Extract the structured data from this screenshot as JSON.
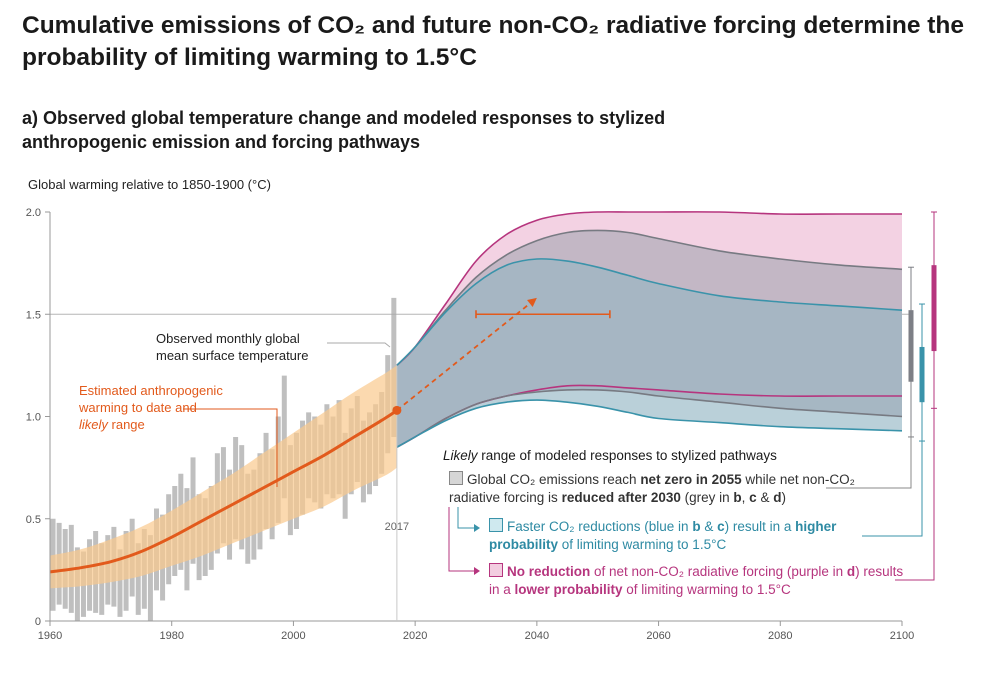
{
  "title": "Cumulative emissions of CO₂ and future non-CO₂ radiative forcing determine the probability of limiting warming to 1.5°C",
  "subtitle": "a) Observed global temperature change and modeled responses to stylized anthropogenic emission and forcing pathways",
  "annotations": {
    "observed": [
      "Observed monthly global",
      "mean surface temperature"
    ],
    "estimated_line1": "Estimated anthropogenic",
    "estimated_line2": "warming to date and",
    "estimated_likely": "likely",
    "estimated_range": " range",
    "year_marker": "2017"
  },
  "legend": {
    "heading_italic": "Likely",
    "heading_rest": " range of modeled responses to stylized pathways",
    "grey": {
      "t1": "Global CO₂ emissions reach ",
      "b1": "net zero in 2055",
      "t2": " while net non-CO₂ radiative forcing is ",
      "b2": "reduced after 2030",
      "t3": " (grey in ",
      "b3": "b",
      "t4": ", ",
      "b4": "c",
      "t5": " & ",
      "b5": "d",
      "t6": ")"
    },
    "blue": {
      "t1": "Faster CO₂ reductions (blue in ",
      "b1": "b",
      "t2": " & ",
      "b2": "c",
      "t3": ") result in a ",
      "b3": "higher probability",
      "t4": " of limiting warming to 1.5°C"
    },
    "purple": {
      "b1": "No reduction",
      "t1": " of net non-CO₂ radiative forcing (purple in ",
      "b2": "d",
      "t2": ") results in a ",
      "b3": "lower probability",
      "t3": " of limiting warming to 1.5°C"
    }
  },
  "colors": {
    "grey": "#8a8d96",
    "blue": "#3a93aa",
    "purple": "#b6357e",
    "orange": "#e25a1c",
    "orange_band": "#f9c98d",
    "observed": "#aaaaaa"
  },
  "chart_data": {
    "type": "area",
    "ylabel": "Global warming relative to 1850-1900 (°C)",
    "xlim": [
      1960,
      2100
    ],
    "ylim": [
      0,
      2.0
    ],
    "xticks": [
      1960,
      1980,
      2000,
      2020,
      2040,
      2060,
      2080,
      2100
    ],
    "yticks": [
      0,
      0.5,
      1.0,
      1.5,
      2.0
    ],
    "ytick_labels": [
      "0",
      "0.5",
      "1.0",
      "1.5",
      "2.0"
    ],
    "reference_line": 1.5,
    "marker_year": 2017,
    "estimated_warming": {
      "x": [
        1960,
        1965,
        1970,
        1975,
        1980,
        1985,
        1990,
        1995,
        2000,
        2005,
        2010,
        2015,
        2017
      ],
      "y": [
        0.24,
        0.26,
        0.29,
        0.34,
        0.41,
        0.49,
        0.57,
        0.65,
        0.73,
        0.81,
        0.9,
        0.99,
        1.03
      ],
      "band_low": [
        0.16,
        0.17,
        0.19,
        0.22,
        0.27,
        0.32,
        0.38,
        0.44,
        0.5,
        0.56,
        0.64,
        0.71,
        0.75
      ],
      "band_high": [
        0.32,
        0.35,
        0.4,
        0.46,
        0.54,
        0.63,
        0.72,
        0.82,
        0.92,
        1.02,
        1.12,
        1.21,
        1.25
      ]
    },
    "observed_monthly": {
      "x": [
        1960,
        1961,
        1962,
        1963,
        1964,
        1965,
        1966,
        1967,
        1968,
        1969,
        1970,
        1971,
        1972,
        1973,
        1974,
        1975,
        1976,
        1977,
        1978,
        1979,
        1980,
        1981,
        1982,
        1983,
        1984,
        1985,
        1986,
        1987,
        1988,
        1989,
        1990,
        1991,
        1992,
        1993,
        1994,
        1995,
        1996,
        1997,
        1998,
        1999,
        2000,
        2001,
        2002,
        2003,
        2004,
        2005,
        2006,
        2007,
        2008,
        2009,
        2010,
        2011,
        2012,
        2013,
        2014,
        2015,
        2016,
        2017
      ],
      "low": [
        0.05,
        0.08,
        0.06,
        0.04,
        0.0,
        0.02,
        0.05,
        0.04,
        0.03,
        0.08,
        0.07,
        0.02,
        0.05,
        0.12,
        0.03,
        0.06,
        0.0,
        0.15,
        0.1,
        0.18,
        0.22,
        0.25,
        0.15,
        0.28,
        0.2,
        0.22,
        0.25,
        0.33,
        0.38,
        0.3,
        0.4,
        0.35,
        0.28,
        0.3,
        0.35,
        0.45,
        0.4,
        0.48,
        0.6,
        0.42,
        0.45,
        0.52,
        0.6,
        0.58,
        0.55,
        0.62,
        0.6,
        0.62,
        0.5,
        0.62,
        0.68,
        0.58,
        0.62,
        0.66,
        0.72,
        0.82,
        0.9,
        0.88
      ],
      "high": [
        0.5,
        0.48,
        0.45,
        0.47,
        0.36,
        0.34,
        0.4,
        0.44,
        0.38,
        0.42,
        0.46,
        0.35,
        0.44,
        0.5,
        0.38,
        0.45,
        0.42,
        0.55,
        0.52,
        0.62,
        0.66,
        0.72,
        0.65,
        0.8,
        0.62,
        0.6,
        0.66,
        0.82,
        0.85,
        0.74,
        0.9,
        0.86,
        0.72,
        0.74,
        0.82,
        0.92,
        0.84,
        1.0,
        1.2,
        0.86,
        0.92,
        0.98,
        1.02,
        1.0,
        0.96,
        1.06,
        1.0,
        1.08,
        0.92,
        1.04,
        1.1,
        0.98,
        1.02,
        1.06,
        1.12,
        1.3,
        1.58,
        1.25
      ]
    },
    "series": [
      {
        "name": "grey",
        "x": [
          2017,
          2020,
          2025,
          2030,
          2035,
          2040,
          2045,
          2050,
          2055,
          2060,
          2070,
          2080,
          2090,
          2100
        ],
        "upper": [
          1.25,
          1.34,
          1.52,
          1.68,
          1.79,
          1.86,
          1.9,
          1.91,
          1.9,
          1.87,
          1.81,
          1.77,
          1.74,
          1.72
        ],
        "lower": [
          0.85,
          0.9,
          0.99,
          1.06,
          1.1,
          1.12,
          1.13,
          1.13,
          1.12,
          1.1,
          1.07,
          1.04,
          1.02,
          1.0
        ]
      },
      {
        "name": "blue",
        "x": [
          2017,
          2020,
          2025,
          2030,
          2035,
          2040,
          2045,
          2050,
          2055,
          2060,
          2070,
          2080,
          2090,
          2100
        ],
        "upper": [
          1.25,
          1.34,
          1.51,
          1.65,
          1.74,
          1.77,
          1.76,
          1.73,
          1.69,
          1.65,
          1.59,
          1.56,
          1.54,
          1.52
        ],
        "lower": [
          0.85,
          0.9,
          0.98,
          1.04,
          1.07,
          1.08,
          1.07,
          1.05,
          1.02,
          0.99,
          0.97,
          0.95,
          0.94,
          0.93
        ]
      },
      {
        "name": "purple",
        "x": [
          2017,
          2020,
          2025,
          2030,
          2035,
          2040,
          2045,
          2050,
          2055,
          2060,
          2070,
          2080,
          2090,
          2100
        ],
        "upper": [
          1.25,
          1.34,
          1.55,
          1.76,
          1.89,
          1.96,
          1.99,
          2.0,
          2.0,
          2.0,
          2.0,
          1.99,
          1.99,
          1.99
        ],
        "lower": [
          0.85,
          0.9,
          0.99,
          1.06,
          1.1,
          1.13,
          1.15,
          1.15,
          1.14,
          1.13,
          1.11,
          1.1,
          1.1,
          1.1
        ]
      }
    ],
    "dashed_projection": {
      "x": [
        2017,
        2040
      ],
      "y": [
        1.03,
        1.58
      ]
    },
    "crossing_range": {
      "y": 1.5,
      "x": [
        2030,
        2052
      ]
    },
    "end_ranges_2100": [
      {
        "name": "grey",
        "whisker": [
          0.9,
          1.73
        ],
        "box": [
          1.17,
          1.52
        ]
      },
      {
        "name": "blue",
        "whisker": [
          0.88,
          1.55
        ],
        "box": [
          1.07,
          1.34
        ]
      },
      {
        "name": "purple",
        "whisker": [
          1.04,
          2.0
        ],
        "box": [
          1.32,
          1.74
        ]
      }
    ]
  }
}
